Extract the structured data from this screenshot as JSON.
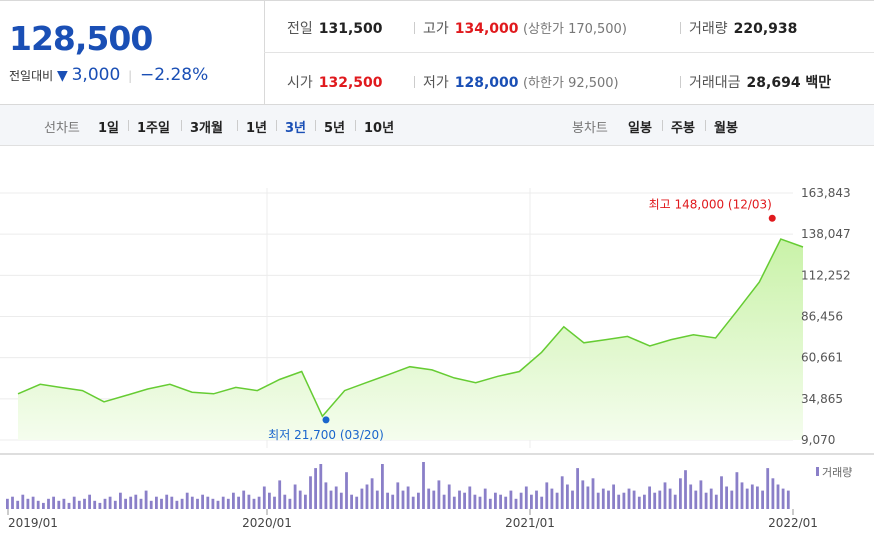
{
  "quote": {
    "price": "128,500",
    "change_label": "전일대비",
    "change_arrow": "▼",
    "change_amount": "3,000",
    "change_percent": "−2.28%"
  },
  "stats": {
    "prev_close_label": "전일",
    "prev_close": "131,500",
    "high_label": "고가",
    "high": "134,000",
    "upper_limit": "(상한가 170,500)",
    "volume_label": "거래량",
    "volume": "220,938",
    "open_label": "시가",
    "open": "132,500",
    "low_label": "저가",
    "low": "128,000",
    "lower_limit": "(하한가 92,500)",
    "trade_value_label": "거래대금",
    "trade_value": "28,694 백만"
  },
  "toolbar": {
    "line_chart_label": "선차트",
    "periods": [
      "1일",
      "1주일",
      "3개월",
      "1년",
      "3년",
      "5년",
      "10년"
    ],
    "active_period": "3년",
    "candle_label": "봉차트",
    "candles": [
      "일봉",
      "주봉",
      "월봉"
    ]
  },
  "colors": {
    "line": "#66cc33",
    "fill_top": "#c9f2a8",
    "fill_bottom": "#f5fdee",
    "volume_bar": "#8a7fc8",
    "high_marker": "#e0191d",
    "low_marker": "#1a66cc"
  },
  "chart_data": {
    "type": "area",
    "ylim": [
      9070,
      163843
    ],
    "yticks": [
      "163,843",
      "138,047",
      "112,252",
      "86,456",
      "60,661",
      "34,865",
      "9,070"
    ],
    "xticks": [
      "2019/01",
      "2020/01",
      "2021/01",
      "2022/01"
    ],
    "max_annotation": "최고 148,000 (12/03)",
    "min_annotation": "최저 21,700 (03/20)",
    "max_point": {
      "date": "2021/12/03",
      "value": 148000
    },
    "min_point": {
      "date": "2020/03/20",
      "value": 21700
    },
    "series": [
      {
        "name": "price",
        "x": [
          "2019/01",
          "2019/02",
          "2019/03",
          "2019/04",
          "2019/05",
          "2019/06",
          "2019/07",
          "2019/08",
          "2019/09",
          "2019/10",
          "2019/11",
          "2019/12",
          "2020/01",
          "2020/02",
          "2020/03",
          "2020/04",
          "2020/05",
          "2020/06",
          "2020/07",
          "2020/08",
          "2020/09",
          "2020/10",
          "2020/11",
          "2020/12",
          "2021/01",
          "2021/02",
          "2021/03",
          "2021/04",
          "2021/05",
          "2021/06",
          "2021/07",
          "2021/08",
          "2021/09",
          "2021/10",
          "2021/11",
          "2021/12",
          "2022/01"
        ],
        "y": [
          38000,
          44000,
          42000,
          40000,
          33000,
          37000,
          41000,
          44000,
          39000,
          38000,
          42000,
          40000,
          47000,
          52000,
          24000,
          40000,
          45000,
          50000,
          55000,
          53000,
          48000,
          45000,
          49000,
          52000,
          64000,
          80000,
          70000,
          72000,
          74000,
          68000,
          72000,
          75000,
          73000,
          90000,
          108000,
          135000,
          130000
        ]
      }
    ],
    "volume": {
      "name": "거래량",
      "values": [
        5,
        6,
        4,
        7,
        5,
        6,
        4,
        3,
        5,
        6,
        4,
        5,
        3,
        6,
        4,
        5,
        7,
        4,
        3,
        5,
        6,
        4,
        8,
        5,
        6,
        7,
        5,
        9,
        4,
        6,
        5,
        7,
        6,
        4,
        5,
        8,
        6,
        5,
        7,
        6,
        5,
        4,
        6,
        5,
        8,
        6,
        9,
        7,
        5,
        6,
        11,
        8,
        6,
        14,
        7,
        5,
        12,
        9,
        7,
        16,
        20,
        22,
        13,
        9,
        11,
        8,
        18,
        7,
        6,
        10,
        12,
        15,
        9,
        22,
        8,
        7,
        13,
        9,
        11,
        6,
        8,
        23,
        10,
        9,
        14,
        7,
        12,
        6,
        9,
        8,
        11,
        7,
        6,
        10,
        5,
        8,
        7,
        6,
        9,
        5,
        8,
        11,
        7,
        9,
        6,
        13,
        10,
        8,
        16,
        12,
        9,
        20,
        14,
        11,
        15,
        8,
        10,
        9,
        12,
        7,
        8,
        10,
        9,
        6,
        7,
        11,
        8,
        9,
        13,
        10,
        7,
        15,
        19,
        12,
        9,
        14,
        8,
        10,
        7,
        16,
        11,
        9,
        18,
        13,
        10,
        12,
        11,
        9,
        20,
        15,
        12,
        10,
        9
      ]
    }
  }
}
